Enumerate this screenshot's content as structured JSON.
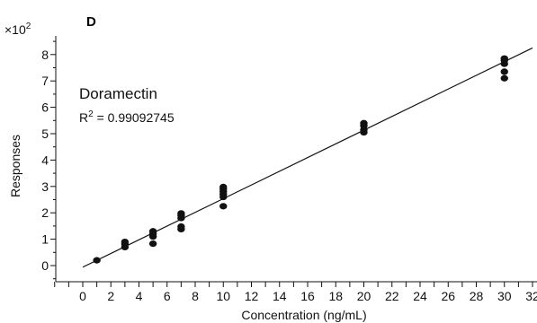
{
  "chart_data": {
    "type": "scatter",
    "panel_label": "D",
    "xlabel": "Concentration (ng/mL)",
    "ylabel": "Responses",
    "y_multiplier_prefix": "×10",
    "y_multiplier_exp": "2",
    "annotation_name": "Doramectin",
    "r2_prefix": "R",
    "r2_exp": "2",
    "r2_value": " = 0.99092745",
    "xlim": [
      -2,
      32
    ],
    "ylim": [
      -0.5,
      8.6
    ],
    "x_ticks": [
      0,
      2,
      4,
      6,
      8,
      10,
      12,
      14,
      16,
      18,
      20,
      22,
      24,
      26,
      28,
      30,
      32
    ],
    "y_ticks": [
      0,
      1,
      2,
      3,
      4,
      5,
      6,
      7,
      8
    ],
    "grid": false,
    "series": [
      {
        "x": [
          1,
          3,
          3,
          3,
          5,
          5,
          5,
          5,
          7,
          7,
          7,
          7,
          7,
          10,
          10,
          10,
          10,
          10,
          10,
          20,
          20,
          20,
          20,
          30,
          30,
          30,
          30,
          30
        ],
        "y": [
          0.2,
          0.7,
          0.82,
          0.9,
          0.83,
          1.1,
          1.2,
          1.3,
          1.38,
          1.48,
          1.8,
          1.9,
          1.98,
          2.25,
          2.6,
          2.7,
          2.8,
          2.9,
          2.98,
          5.05,
          5.15,
          5.3,
          5.4,
          7.1,
          7.35,
          7.65,
          7.78,
          7.85
        ]
      }
    ],
    "fit_line": {
      "x": [
        0,
        32
      ],
      "y": [
        -0.06,
        8.25
      ]
    },
    "colors": {
      "points": "#111111",
      "line": "#111111",
      "axis": "#111111"
    }
  }
}
